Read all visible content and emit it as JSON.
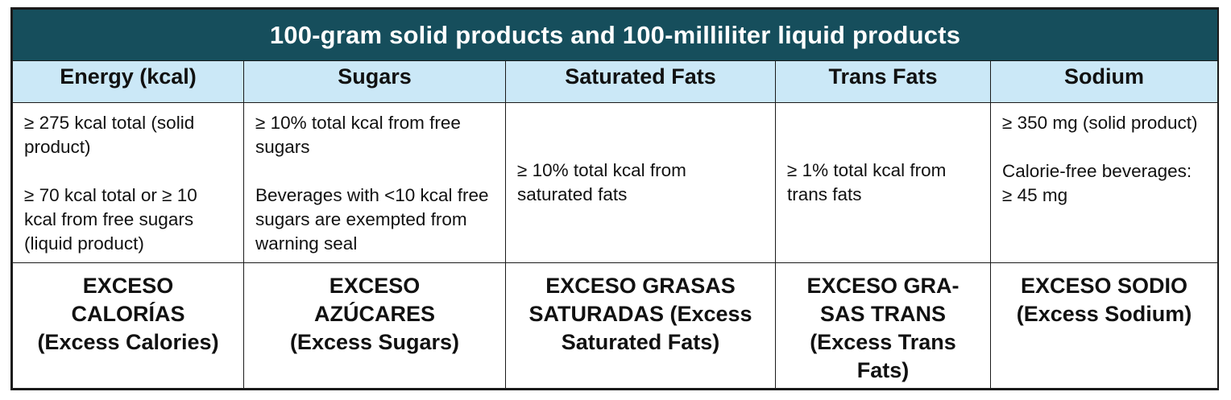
{
  "table": {
    "title": "100-gram solid products and 100-milliliter liquid products",
    "columns": [
      {
        "header": "Energy (kcal)",
        "criteria": [
          "≥ 275 kcal total (solid product)",
          "≥ 70 kcal total or ≥ 10 kcal from free sugars (liquid product)"
        ],
        "seal_lines": [
          "EXCESO",
          "CALORÍAS",
          "(Excess Calories)"
        ]
      },
      {
        "header": "Sugars",
        "criteria": [
          "≥ 10% total kcal from free sugars",
          "Beverages with <10 kcal free sugars are exempted from warning seal"
        ],
        "seal_lines": [
          "EXCESO",
          "AZÚCARES",
          "(Excess Sugars)"
        ]
      },
      {
        "header": "Saturated Fats",
        "criteria": [
          "≥ 10% total kcal from saturated fats"
        ],
        "seal_lines": [
          "EXCESO GRASAS",
          "SATURADAS (Excess",
          "Saturated Fats)"
        ]
      },
      {
        "header": "Trans Fats",
        "criteria": [
          "≥ 1% total kcal from trans fats"
        ],
        "seal_lines": [
          "EXCESO GRA-",
          "SAS TRANS",
          "(Excess Trans",
          "Fats)"
        ]
      },
      {
        "header": "Sodium",
        "criteria": [
          "≥ 350 mg (solid product)",
          "Calorie-free beverages: ≥ 45 mg"
        ],
        "seal_lines": [
          "EXCESO SODIO",
          "(Excess Sodium)"
        ]
      }
    ]
  },
  "colors": {
    "title_background": "#164e5c",
    "header_background": "#cbe8f7",
    "border": "#1a1a1a"
  }
}
